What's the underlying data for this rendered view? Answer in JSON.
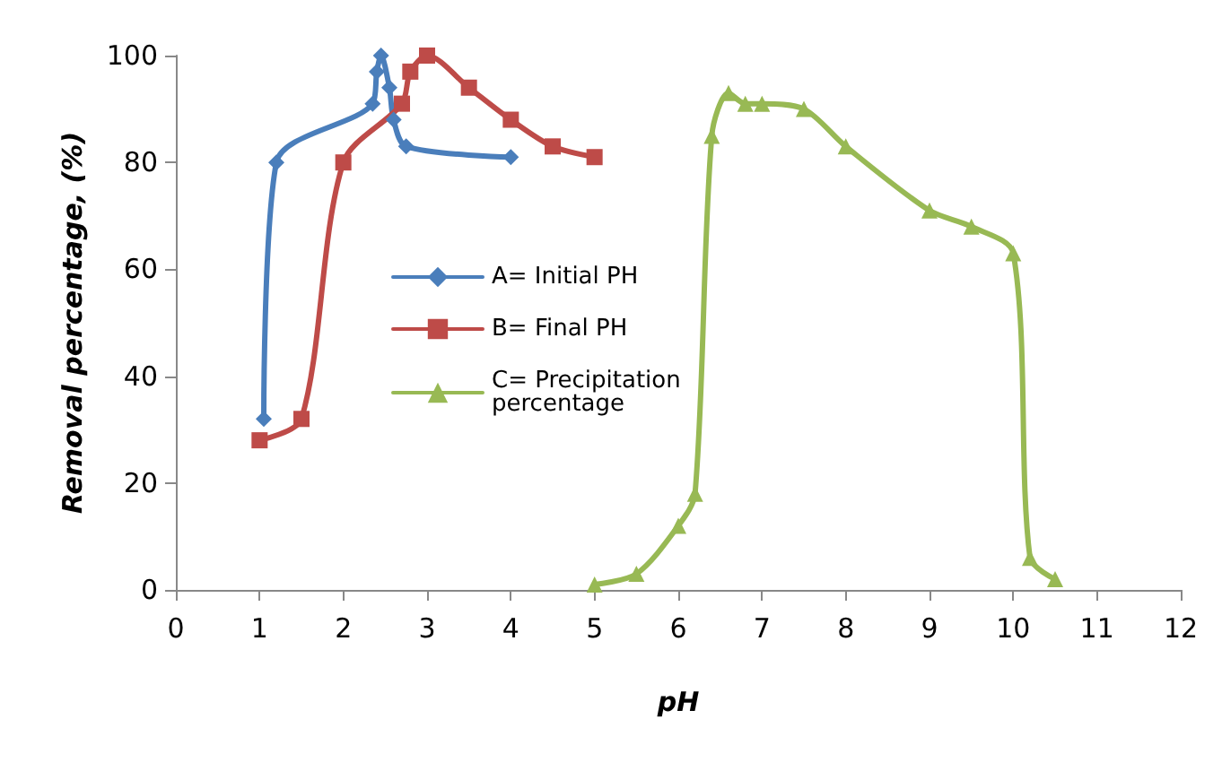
{
  "chart_data": {
    "type": "line",
    "xlabel": "pH",
    "ylabel": "Removal percentage, (%)",
    "xlim": [
      0,
      12
    ],
    "xticks": [
      0,
      1,
      2,
      3,
      4,
      5,
      6,
      7,
      8,
      9,
      10,
      11,
      12
    ],
    "ylim": [
      0,
      100
    ],
    "yticks": [
      0,
      20,
      40,
      60,
      80,
      100
    ],
    "grid": false,
    "legend": "left",
    "line_style": "solid",
    "series": [
      {
        "name": "A= Initial PH",
        "color": "#4a7ebb",
        "marker": "diamond",
        "x": [
          1.05,
          1.2,
          2.35,
          2.4,
          2.45,
          2.55,
          2.6,
          2.75,
          4
        ],
        "values": [
          32,
          80,
          91,
          97,
          100,
          94,
          88,
          83,
          81
        ]
      },
      {
        "name": "B= Final PH",
        "color": "#be4b48",
        "marker": "square",
        "x": [
          1,
          1.5,
          2,
          2.7,
          2.8,
          3,
          3.5,
          4,
          4.5,
          5
        ],
        "values": [
          28,
          32,
          80,
          91,
          97,
          100,
          94,
          88,
          83,
          81
        ]
      },
      {
        "name": "C= Precipitation percentage",
        "color": "#98b954",
        "marker": "triangle",
        "x": [
          5,
          5.5,
          6,
          6.2,
          6.4,
          6.6,
          6.8,
          7,
          7.5,
          8,
          9,
          9.5,
          10,
          10.2,
          10.5
        ],
        "values": [
          1,
          3,
          12,
          18,
          85,
          93,
          91,
          91,
          90,
          83,
          71,
          68,
          63,
          6,
          2
        ]
      }
    ]
  }
}
